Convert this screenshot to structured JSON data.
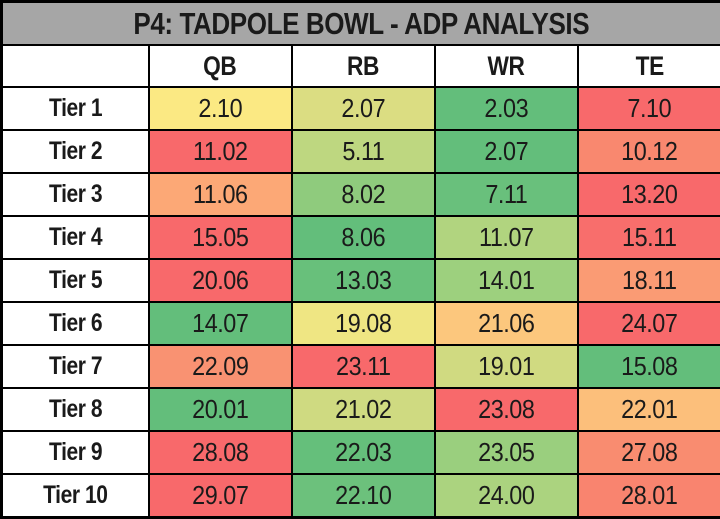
{
  "title": "P4: TADPOLE BOWL - ADP ANALYSIS",
  "table": {
    "corner_label": "",
    "columns": [
      "QB",
      "RB",
      "WR",
      "TE"
    ],
    "rows": [
      {
        "label": "Tier 1",
        "cells": [
          {
            "value": "2.10",
            "color": "#FBE983"
          },
          {
            "value": "2.07",
            "color": "#DBDD82"
          },
          {
            "value": "2.03",
            "color": "#63BE7B"
          },
          {
            "value": "7.10",
            "color": "#F8696B"
          }
        ]
      },
      {
        "label": "Tier 2",
        "cells": [
          {
            "value": "11.02",
            "color": "#F8696B"
          },
          {
            "value": "5.11",
            "color": "#BED780"
          },
          {
            "value": "2.07",
            "color": "#63BE7B"
          },
          {
            "value": "10.12",
            "color": "#F9886F"
          }
        ]
      },
      {
        "label": "Tier 3",
        "cells": [
          {
            "value": "11.06",
            "color": "#FCA876"
          },
          {
            "value": "8.02",
            "color": "#8FCB7D"
          },
          {
            "value": "7.11",
            "color": "#69C07C"
          },
          {
            "value": "13.20",
            "color": "#F8696B"
          }
        ]
      },
      {
        "label": "Tier 4",
        "cells": [
          {
            "value": "15.05",
            "color": "#F8696B"
          },
          {
            "value": "8.06",
            "color": "#63BE7B"
          },
          {
            "value": "11.07",
            "color": "#B1D47F"
          },
          {
            "value": "15.11",
            "color": "#F86E6C"
          }
        ]
      },
      {
        "label": "Tier 5",
        "cells": [
          {
            "value": "20.06",
            "color": "#F8696B"
          },
          {
            "value": "13.03",
            "color": "#68C07B"
          },
          {
            "value": "14.01",
            "color": "#9DD07E"
          },
          {
            "value": "18.11",
            "color": "#FA9B74"
          }
        ]
      },
      {
        "label": "Tier 6",
        "cells": [
          {
            "value": "14.07",
            "color": "#63BE7B"
          },
          {
            "value": "19.08",
            "color": "#EFE683"
          },
          {
            "value": "21.06",
            "color": "#FCC77D"
          },
          {
            "value": "24.07",
            "color": "#F8696B"
          }
        ]
      },
      {
        "label": "Tier 7",
        "cells": [
          {
            "value": "22.09",
            "color": "#F99272"
          },
          {
            "value": "23.11",
            "color": "#F8696B"
          },
          {
            "value": "19.01",
            "color": "#D0DA81"
          },
          {
            "value": "15.08",
            "color": "#63BE7B"
          }
        ]
      },
      {
        "label": "Tier 8",
        "cells": [
          {
            "value": "20.01",
            "color": "#63BE7B"
          },
          {
            "value": "21.02",
            "color": "#CFDA81"
          },
          {
            "value": "23.08",
            "color": "#F8696B"
          },
          {
            "value": "22.01",
            "color": "#FCBF7B"
          }
        ]
      },
      {
        "label": "Tier 9",
        "cells": [
          {
            "value": "28.08",
            "color": "#F8696B"
          },
          {
            "value": "22.03",
            "color": "#65BF7B"
          },
          {
            "value": "23.05",
            "color": "#9ACF7E"
          },
          {
            "value": "27.08",
            "color": "#F98C70"
          }
        ]
      },
      {
        "label": "Tier 10",
        "cells": [
          {
            "value": "29.07",
            "color": "#F8696B"
          },
          {
            "value": "22.10",
            "color": "#6CC17C"
          },
          {
            "value": "24.00",
            "color": "#ABD37F"
          },
          {
            "value": "28.01",
            "color": "#F9846F"
          }
        ]
      }
    ]
  },
  "colors": {
    "title_bg": "#A6A6A6",
    "header_bg": "#FFFFFF",
    "border": "#000000",
    "scale_low_green": "#63BE7B",
    "scale_mid_yellow": "#FFEB84",
    "scale_high_red": "#F8696B"
  },
  "chart_data": {
    "type": "heatmap",
    "title": "P4: TADPOLE BOWL - ADP ANALYSIS",
    "columns": [
      "QB",
      "RB",
      "WR",
      "TE"
    ],
    "rows": [
      "Tier 1",
      "Tier 2",
      "Tier 3",
      "Tier 4",
      "Tier 5",
      "Tier 6",
      "Tier 7",
      "Tier 8",
      "Tier 9",
      "Tier 10"
    ],
    "values": [
      [
        2.1,
        2.07,
        2.03,
        7.1
      ],
      [
        11.02,
        5.11,
        2.07,
        10.12
      ],
      [
        11.06,
        8.02,
        7.11,
        13.2
      ],
      [
        15.05,
        8.06,
        11.07,
        15.11
      ],
      [
        20.06,
        13.03,
        14.01,
        18.11
      ],
      [
        14.07,
        19.08,
        21.06,
        24.07
      ],
      [
        22.09,
        23.11,
        19.01,
        15.08
      ],
      [
        20.01,
        21.02,
        23.08,
        22.01
      ],
      [
        28.08,
        22.03,
        23.05,
        27.08
      ],
      [
        29.07,
        22.1,
        24.0,
        28.01
      ]
    ],
    "value_format": "round.pick (two decimals preserved)",
    "colorscale": "3-color scale per row: low=green #63BE7B, mid=yellow #FFEB84, high=red #F8696B",
    "legend_position": "none",
    "grid": true
  }
}
